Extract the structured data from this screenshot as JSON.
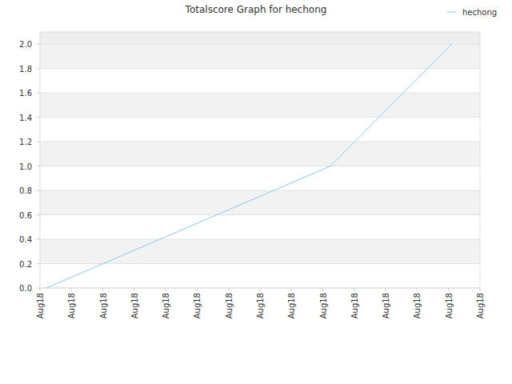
{
  "chart_data": {
    "type": "line",
    "title": "Totalscore Graph for hechong",
    "x": [
      0.2,
      9.24,
      13.1
    ],
    "series": [
      {
        "name": "hechong",
        "color": "#8ec8f2",
        "values": [
          0,
          1,
          2
        ]
      }
    ],
    "xlim": [
      0,
      14
    ],
    "xticks": [
      {
        "value": 0,
        "label": "Aug18"
      },
      {
        "value": 1,
        "label": "Aug18"
      },
      {
        "value": 2,
        "label": "Aug18"
      },
      {
        "value": 3,
        "label": "Aug18"
      },
      {
        "value": 4,
        "label": "Aug18"
      },
      {
        "value": 5,
        "label": "Aug18"
      },
      {
        "value": 6,
        "label": "Aug18"
      },
      {
        "value": 7,
        "label": "Aug18"
      },
      {
        "value": 8,
        "label": "Aug18"
      },
      {
        "value": 9,
        "label": "Aug18"
      },
      {
        "value": 10,
        "label": "Aug18"
      },
      {
        "value": 11,
        "label": "Aug18"
      },
      {
        "value": 12,
        "label": "Aug18"
      },
      {
        "value": 13,
        "label": "Aug18"
      },
      {
        "value": 14,
        "label": "Aug18"
      }
    ],
    "ylim": [
      0,
      2.1
    ],
    "yticks": [
      {
        "value": 0,
        "label": "0.0"
      },
      0.2,
      0.4,
      0.6,
      0.8,
      {
        "value": 1,
        "label": "1.0"
      },
      1.2,
      1.4,
      1.6,
      1.8,
      {
        "value": 2,
        "label": "2.0"
      }
    ],
    "grid": true,
    "legend": "top-right"
  }
}
